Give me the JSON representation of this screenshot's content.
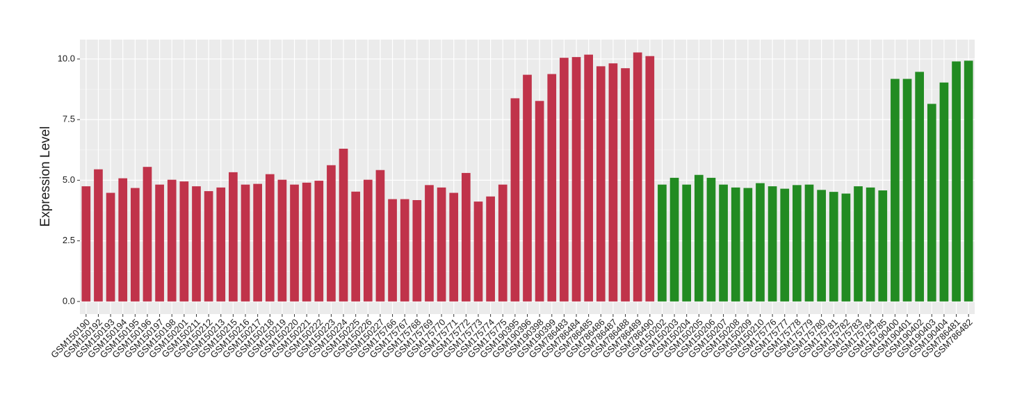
{
  "chart_data": {
    "type": "bar",
    "y_label": "Expression Level",
    "categories": [
      "GSM150190",
      "GSM150192",
      "GSM150193",
      "GSM150194",
      "GSM150195",
      "GSM150196",
      "GSM150197",
      "GSM150198",
      "GSM150201",
      "GSM150211",
      "GSM150212",
      "GSM150213",
      "GSM150215",
      "GSM150216",
      "GSM150217",
      "GSM150218",
      "GSM150219",
      "GSM150220",
      "GSM150221",
      "GSM150222",
      "GSM150223",
      "GSM150224",
      "GSM150225",
      "GSM150226",
      "GSM150227",
      "GSM175766",
      "GSM175767",
      "GSM175768",
      "GSM175769",
      "GSM175770",
      "GSM175771",
      "GSM175772",
      "GSM175773",
      "GSM175774",
      "GSM175775",
      "GSM190395",
      "GSM190396",
      "GSM190398",
      "GSM190399",
      "GSM786483",
      "GSM786484",
      "GSM786485",
      "GSM786486",
      "GSM786487",
      "GSM786488",
      "GSM786489",
      "GSM786490",
      "GSM150202",
      "GSM150203",
      "GSM150204",
      "GSM150205",
      "GSM150206",
      "GSM150207",
      "GSM150208",
      "GSM150209",
      "GSM150210",
      "GSM175776",
      "GSM175777",
      "GSM175778",
      "GSM175779",
      "GSM175780",
      "GSM175781",
      "GSM175782",
      "GSM175783",
      "GSM175784",
      "GSM175785",
      "GSM190400",
      "GSM190401",
      "GSM190402",
      "GSM190403",
      "GSM190404",
      "GSM786481",
      "GSM786482"
    ],
    "values": [
      4.75,
      5.45,
      4.48,
      5.08,
      4.68,
      5.55,
      4.82,
      5.02,
      4.95,
      4.75,
      4.55,
      4.7,
      5.33,
      4.82,
      4.85,
      5.25,
      5.02,
      4.82,
      4.9,
      4.98,
      5.62,
      6.3,
      4.53,
      5.02,
      5.42,
      4.22,
      4.22,
      4.18,
      4.8,
      4.7,
      4.48,
      5.3,
      4.12,
      4.33,
      4.82,
      8.38,
      9.35,
      8.27,
      9.38,
      10.05,
      10.08,
      10.18,
      9.7,
      9.82,
      9.62,
      10.27,
      10.12,
      4.82,
      5.1,
      4.82,
      5.22,
      5.1,
      4.82,
      4.7,
      4.68,
      4.88,
      4.75,
      4.65,
      4.8,
      4.82,
      4.6,
      4.52,
      4.45,
      4.75,
      4.7,
      4.58,
      9.18,
      9.18,
      9.47,
      8.15,
      9.03,
      9.9,
      9.93
    ],
    "colors": [
      "#c0334a",
      "#c0334a",
      "#c0334a",
      "#c0334a",
      "#c0334a",
      "#c0334a",
      "#c0334a",
      "#c0334a",
      "#c0334a",
      "#c0334a",
      "#c0334a",
      "#c0334a",
      "#c0334a",
      "#c0334a",
      "#c0334a",
      "#c0334a",
      "#c0334a",
      "#c0334a",
      "#c0334a",
      "#c0334a",
      "#c0334a",
      "#c0334a",
      "#c0334a",
      "#c0334a",
      "#c0334a",
      "#c0334a",
      "#c0334a",
      "#c0334a",
      "#c0334a",
      "#c0334a",
      "#c0334a",
      "#c0334a",
      "#c0334a",
      "#c0334a",
      "#c0334a",
      "#c0334a",
      "#c0334a",
      "#c0334a",
      "#c0334a",
      "#c0334a",
      "#c0334a",
      "#c0334a",
      "#c0334a",
      "#c0334a",
      "#c0334a",
      "#c0334a",
      "#c0334a",
      "#228b22",
      "#228b22",
      "#228b22",
      "#228b22",
      "#228b22",
      "#228b22",
      "#228b22",
      "#228b22",
      "#228b22",
      "#228b22",
      "#228b22",
      "#228b22",
      "#228b22",
      "#228b22",
      "#228b22",
      "#228b22",
      "#228b22",
      "#228b22",
      "#228b22",
      "#228b22",
      "#228b22",
      "#228b22",
      "#228b22",
      "#228b22",
      "#228b22",
      "#228b22"
    ],
    "ylim": [
      -0.52,
      10.8
    ],
    "yticks": [
      {
        "value": 0,
        "label": "0.0"
      },
      {
        "value": 2.5,
        "label": "2.5"
      },
      {
        "value": 5,
        "label": "5.0"
      },
      {
        "value": 7.5,
        "label": "7.5"
      },
      {
        "value": 10,
        "label": "10.0"
      }
    ],
    "grid": true
  }
}
